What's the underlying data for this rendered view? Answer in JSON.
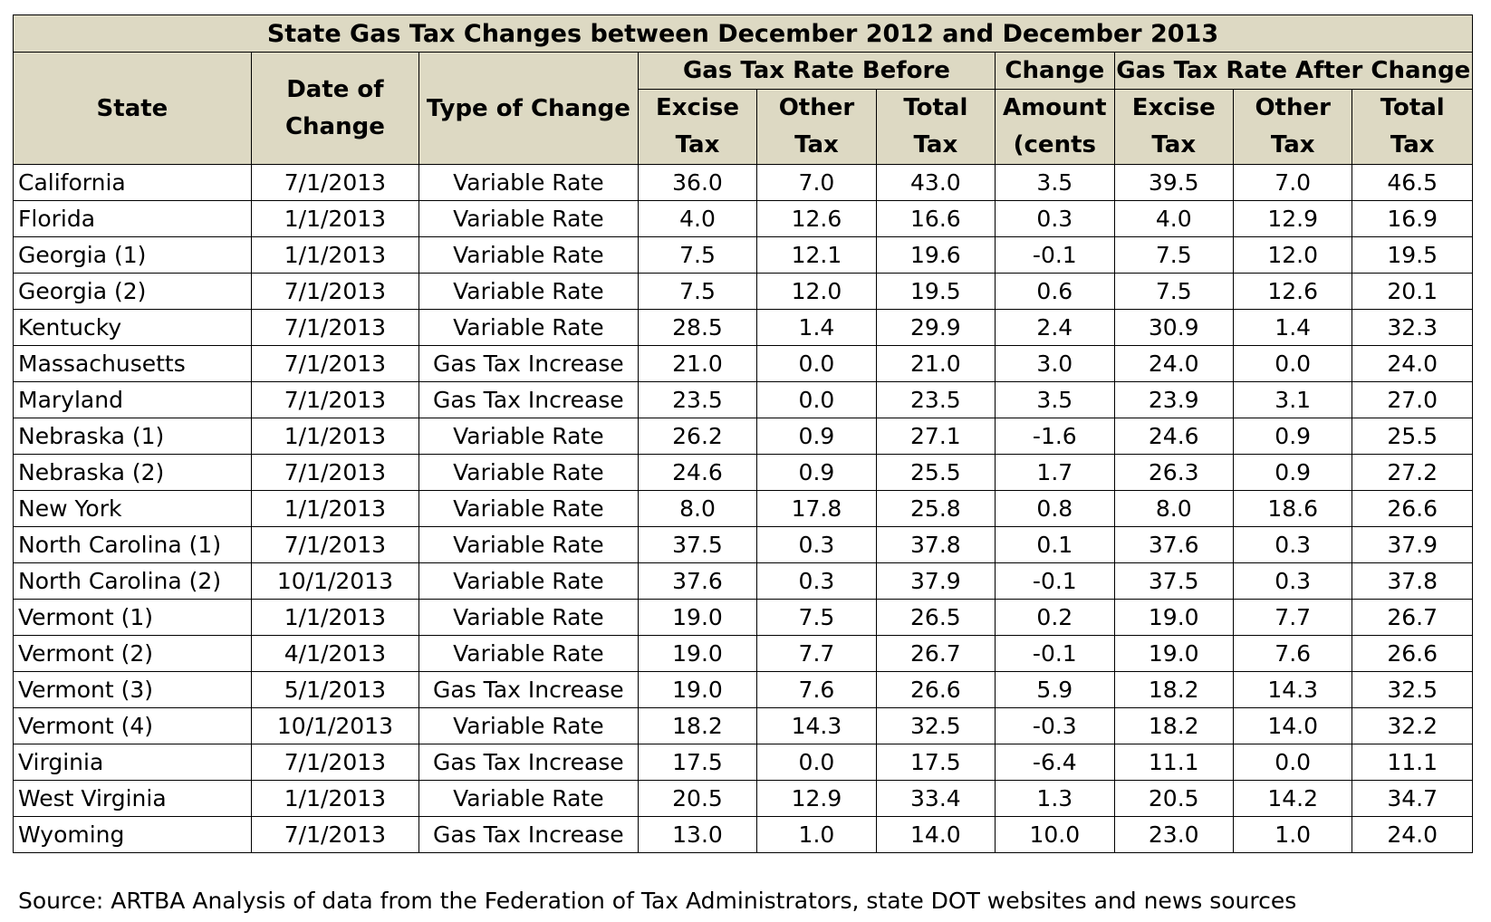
{
  "title": "State Gas Tax Changes between December 2012 and December 2013",
  "headers": {
    "state": "State",
    "date_line1": "Date of",
    "date_line2": "Change",
    "type": "Type of Change",
    "before_group": "Gas Tax Rate Before",
    "change_line1": "Change",
    "after_group": "Gas Tax Rate After Change",
    "excise_line1": "Excise",
    "excise_line2": "Tax",
    "other_line1": "Other",
    "other_line2": "Tax",
    "total_line1": "Total",
    "total_line2": "Tax",
    "amount_line1": "Amount",
    "amount_line2": "(cents"
  },
  "rows": [
    [
      "California",
      "7/1/2013",
      "Variable Rate",
      "36.0",
      "7.0",
      "43.0",
      "3.5",
      "39.5",
      "7.0",
      "46.5"
    ],
    [
      "Florida",
      "1/1/2013",
      "Variable Rate",
      "4.0",
      "12.6",
      "16.6",
      "0.3",
      "4.0",
      "12.9",
      "16.9"
    ],
    [
      "Georgia (1)",
      "1/1/2013",
      "Variable Rate",
      "7.5",
      "12.1",
      "19.6",
      "-0.1",
      "7.5",
      "12.0",
      "19.5"
    ],
    [
      "Georgia (2)",
      "7/1/2013",
      "Variable Rate",
      "7.5",
      "12.0",
      "19.5",
      "0.6",
      "7.5",
      "12.6",
      "20.1"
    ],
    [
      "Kentucky",
      "7/1/2013",
      "Variable Rate",
      "28.5",
      "1.4",
      "29.9",
      "2.4",
      "30.9",
      "1.4",
      "32.3"
    ],
    [
      "Massachusetts",
      "7/1/2013",
      "Gas Tax Increase",
      "21.0",
      "0.0",
      "21.0",
      "3.0",
      "24.0",
      "0.0",
      "24.0"
    ],
    [
      "Maryland",
      "7/1/2013",
      "Gas Tax Increase",
      "23.5",
      "0.0",
      "23.5",
      "3.5",
      "23.9",
      "3.1",
      "27.0"
    ],
    [
      "Nebraska (1)",
      "1/1/2013",
      "Variable Rate",
      "26.2",
      "0.9",
      "27.1",
      "-1.6",
      "24.6",
      "0.9",
      "25.5"
    ],
    [
      "Nebraska (2)",
      "7/1/2013",
      "Variable Rate",
      "24.6",
      "0.9",
      "25.5",
      "1.7",
      "26.3",
      "0.9",
      "27.2"
    ],
    [
      "New York",
      "1/1/2013",
      "Variable Rate",
      "8.0",
      "17.8",
      "25.8",
      "0.8",
      "8.0",
      "18.6",
      "26.6"
    ],
    [
      "North Carolina (1)",
      "7/1/2013",
      "Variable Rate",
      "37.5",
      "0.3",
      "37.8",
      "0.1",
      "37.6",
      "0.3",
      "37.9"
    ],
    [
      "North Carolina (2)",
      "10/1/2013",
      "Variable Rate",
      "37.6",
      "0.3",
      "37.9",
      "-0.1",
      "37.5",
      "0.3",
      "37.8"
    ],
    [
      "Vermont (1)",
      "1/1/2013",
      "Variable Rate",
      "19.0",
      "7.5",
      "26.5",
      "0.2",
      "19.0",
      "7.7",
      "26.7"
    ],
    [
      "Vermont (2)",
      "4/1/2013",
      "Variable Rate",
      "19.0",
      "7.7",
      "26.7",
      "-0.1",
      "19.0",
      "7.6",
      "26.6"
    ],
    [
      "Vermont (3)",
      "5/1/2013",
      "Gas Tax Increase",
      "19.0",
      "7.6",
      "26.6",
      "5.9",
      "18.2",
      "14.3",
      "32.5"
    ],
    [
      "Vermont (4)",
      "10/1/2013",
      "Variable Rate",
      "18.2",
      "14.3",
      "32.5",
      "-0.3",
      "18.2",
      "14.0",
      "32.2"
    ],
    [
      "Virginia",
      "7/1/2013",
      "Gas Tax Increase",
      "17.5",
      "0.0",
      "17.5",
      "-6.4",
      "11.1",
      "0.0",
      "11.1"
    ],
    [
      "West Virginia",
      "1/1/2013",
      "Variable Rate",
      "20.5",
      "12.9",
      "33.4",
      "1.3",
      "20.5",
      "14.2",
      "34.7"
    ],
    [
      "Wyoming",
      "7/1/2013",
      "Gas Tax Increase",
      "13.0",
      "1.0",
      "14.0",
      "10.0",
      "23.0",
      "1.0",
      "24.0"
    ]
  ],
  "source": "Source: ARTBA Analysis of data from the Federation of Tax Administrators, state DOT websites and news sources",
  "colors": {
    "header_bg": "#ddd9c3",
    "border": "#000000"
  }
}
